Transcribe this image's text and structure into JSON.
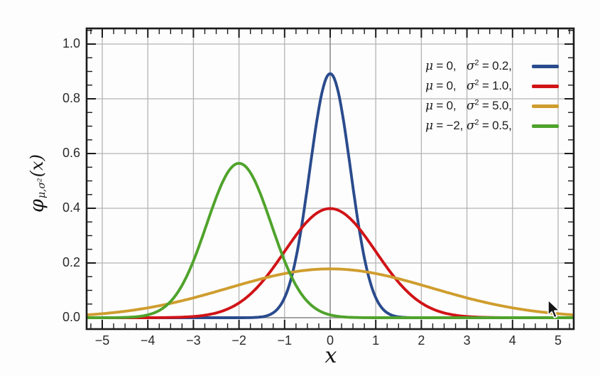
{
  "page": {
    "background": "#fdfdfd"
  },
  "chart_data": {
    "type": "line",
    "title": "",
    "xlabel": "x",
    "ylabel": {
      "phi": "φ",
      "subscript": "μ,σ²",
      "argument": "(x)"
    },
    "xlim": [
      -5.34,
      5.34
    ],
    "ylim": [
      -0.042,
      1.057
    ],
    "x_major_ticks": [
      -5,
      -4,
      -3,
      -2,
      -1,
      0,
      1,
      2,
      3,
      4,
      5
    ],
    "x_tick_labels": [
      "−5",
      "−4",
      "−3",
      "−2",
      "−1",
      "0",
      "1",
      "2",
      "3",
      "4",
      "5"
    ],
    "y_major_ticks": [
      0,
      0.2,
      0.4,
      0.6,
      0.8,
      1.0
    ],
    "y_tick_labels": [
      "0.0",
      "0.2",
      "0.4",
      "0.6",
      "0.8",
      "1.0"
    ],
    "x_minor_step": 0.25,
    "y_minor_step": 0.05,
    "grid": true,
    "legend_position": "top-right",
    "colors": {
      "grid_light": "#b4b4b4",
      "grid_zero": "#878787",
      "frame": "#1b1b1b",
      "tick": "#1b1b1b",
      "text": "#2a2a2a"
    },
    "series": [
      {
        "name": "μ = 0, σ² = 0.2",
        "mu": 0,
        "sigma2": 0.2,
        "peak": 0.892,
        "color": "#2a4b8d",
        "legend": {
          "mu_sym": "μ",
          "mu_eq": "= 0,",
          "var_sym": "σ",
          "var_sup": "2",
          "var_eq": "= 0.2,"
        }
      },
      {
        "name": "μ = 0, σ² = 1.0",
        "mu": 0,
        "sigma2": 1.0,
        "peak": 0.399,
        "color": "#d01317",
        "legend": {
          "mu_sym": "μ",
          "mu_eq": "= 0,",
          "var_sym": "σ",
          "var_sup": "2",
          "var_eq": "= 1.0,"
        }
      },
      {
        "name": "μ = 0, σ² = 5.0",
        "mu": 0,
        "sigma2": 5.0,
        "peak": 0.178,
        "color": "#cf9d2e",
        "legend": {
          "mu_sym": "μ",
          "mu_eq": "= 0,",
          "var_sym": "σ",
          "var_sup": "2",
          "var_eq": "= 5.0,"
        }
      },
      {
        "name": "μ = −2, σ² = 0.5",
        "mu": -2,
        "sigma2": 0.5,
        "peak": 0.564,
        "color": "#4fa32b",
        "legend": {
          "mu_sym": "μ",
          "mu_eq": "= −2,",
          "var_sym": "σ",
          "var_sup": "2",
          "var_eq": "= 0.5,"
        }
      }
    ]
  }
}
